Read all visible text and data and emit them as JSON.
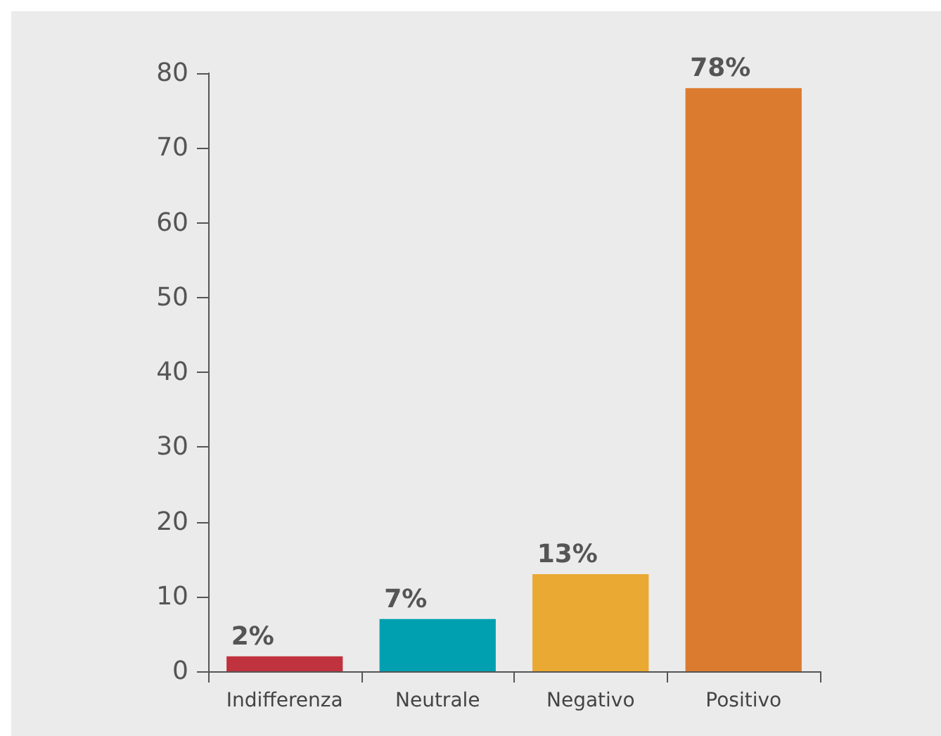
{
  "chart_data": {
    "type": "bar",
    "categories": [
      "Indifferenza",
      "Neutrale",
      "Negativo",
      "Positivo"
    ],
    "values": [
      2,
      7,
      13,
      78
    ],
    "colors": [
      "#c1323f",
      "#00a0b0",
      "#eaa932",
      "#db7b30"
    ],
    "value_labels": [
      "2%",
      "7%",
      "13%",
      "78%"
    ],
    "ylim": [
      0,
      80
    ],
    "yticks": [
      0,
      10,
      20,
      30,
      40,
      50,
      60,
      70,
      80
    ],
    "grid": false
  }
}
